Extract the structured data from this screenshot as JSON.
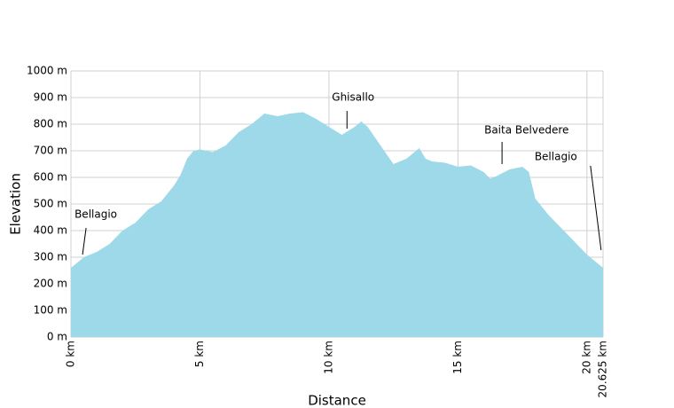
{
  "chart_data": {
    "type": "area",
    "x_label": "Distance",
    "y_label": "Elevation",
    "color": "#9dd9e8",
    "grid": true,
    "x": [
      0,
      0.5,
      1,
      1.5,
      2,
      2.5,
      3,
      3.5,
      4,
      4.25,
      4.5,
      4.75,
      5,
      5.5,
      6,
      6.5,
      7,
      7.5,
      8,
      8.5,
      9,
      9.5,
      10,
      10.5,
      11,
      11.25,
      11.5,
      12,
      12.5,
      13,
      13.5,
      13.75,
      14,
      14.5,
      15,
      15.5,
      16,
      16.25,
      16.5,
      17,
      17.5,
      17.75,
      18,
      18.5,
      19,
      19.5,
      20,
      20.625
    ],
    "values": [
      260,
      300,
      320,
      350,
      400,
      430,
      480,
      510,
      570,
      610,
      670,
      700,
      705,
      695,
      720,
      770,
      800,
      840,
      830,
      840,
      845,
      820,
      790,
      760,
      790,
      810,
      790,
      720,
      650,
      670,
      710,
      670,
      660,
      655,
      640,
      645,
      620,
      595,
      605,
      630,
      640,
      620,
      520,
      460,
      410,
      360,
      310,
      260
    ],
    "xlim": [
      0,
      20.625
    ],
    "ylim": [
      0,
      1000
    ],
    "xticks": [
      {
        "value": 0,
        "label": "0 km"
      },
      {
        "value": 5,
        "label": "5 km"
      },
      {
        "value": 10,
        "label": "10 km"
      },
      {
        "value": 15,
        "label": "15 km"
      },
      {
        "value": 20,
        "label": "20 km"
      },
      {
        "value": 20.625,
        "label": "20.625 km"
      }
    ],
    "yticks": [
      {
        "value": 0,
        "label": "0 m"
      },
      {
        "value": 100,
        "label": "100 m"
      },
      {
        "value": 200,
        "label": "200 m"
      },
      {
        "value": 300,
        "label": "300 m"
      },
      {
        "value": 400,
        "label": "400 m"
      },
      {
        "value": 500,
        "label": "500 m"
      },
      {
        "value": 600,
        "label": "600 m"
      },
      {
        "value": 700,
        "label": "700 m"
      },
      {
        "value": 800,
        "label": "800 m"
      },
      {
        "value": 900,
        "label": "900 m"
      },
      {
        "value": 1000,
        "label": "1000 m"
      }
    ],
    "annotations": [
      {
        "text": "Bellagio",
        "x": 0.45,
        "y": 310
      },
      {
        "text": "Ghisallo",
        "x": 10.7,
        "y": 783
      },
      {
        "text": "Baita Belvedere",
        "x": 16.71,
        "y": 650
      },
      {
        "text": "Bellagio",
        "x": 20.55,
        "y": 327
      }
    ]
  }
}
